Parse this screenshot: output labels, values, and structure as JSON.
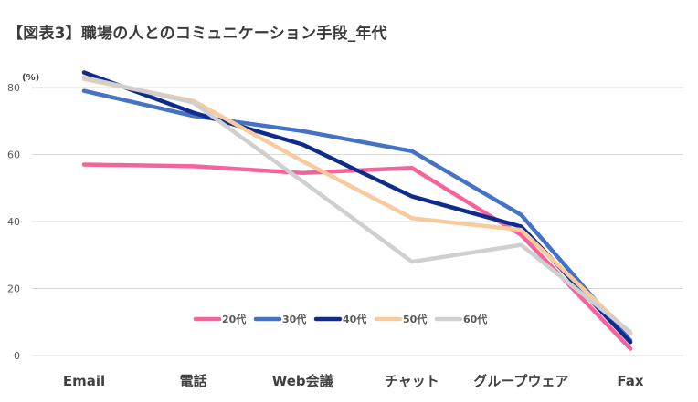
{
  "title": "【図表3】職場の人とのコミュニケーション手段_年代",
  "chart_data": {
    "type": "line",
    "title": "【図表3】職場の人とのコミュニケーション手段_年代",
    "ylabel": "(%)",
    "ylim": [
      0,
      80
    ],
    "yticks": [
      0,
      20,
      40,
      60,
      80
    ],
    "grid": true,
    "legend_position": "bottom-center",
    "categories": [
      "Email",
      "電話",
      "Web会議",
      "チャット",
      "グループウェア",
      "Fax"
    ],
    "series": [
      {
        "name": "20代",
        "color": "#F4649A",
        "values": [
          57,
          56.5,
          54.5,
          56,
          36,
          2
        ]
      },
      {
        "name": "30代",
        "color": "#4472C4",
        "values": [
          79,
          71.5,
          67,
          61,
          42,
          4.5
        ]
      },
      {
        "name": "40代",
        "color": "#0F2C8C",
        "values": [
          84.5,
          72.5,
          63,
          47.5,
          38.5,
          4
        ]
      },
      {
        "name": "50代",
        "color": "#F8CB9E",
        "values": [
          82.5,
          76,
          58,
          41,
          37.5,
          6.5
        ]
      },
      {
        "name": "60代",
        "color": "#CFCFCF",
        "values": [
          83,
          75.5,
          52,
          28,
          33,
          7
        ]
      }
    ]
  }
}
